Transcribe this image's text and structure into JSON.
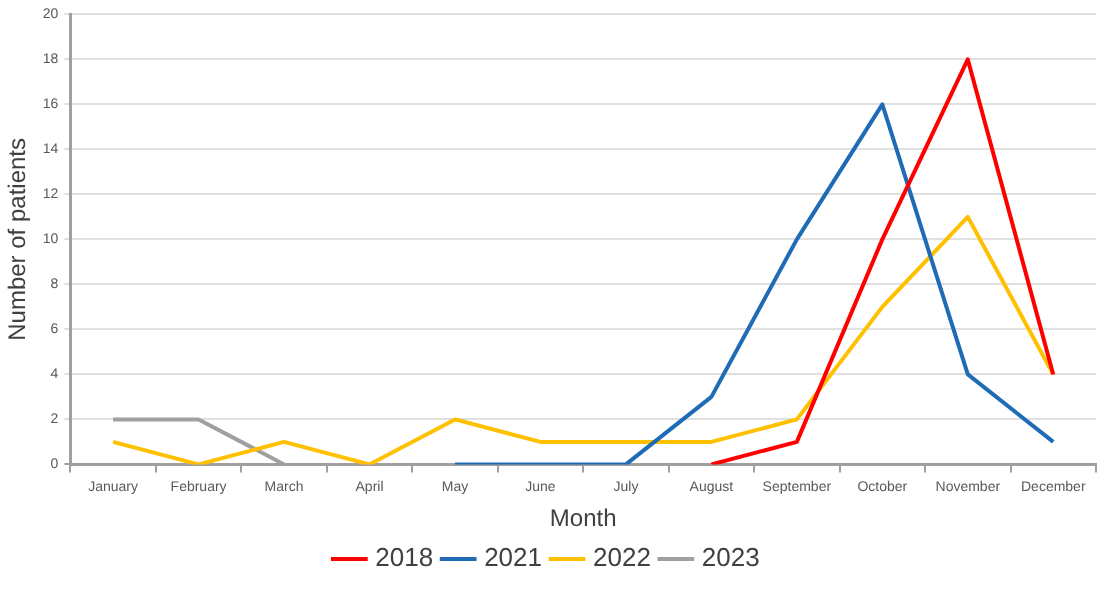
{
  "chart_data": {
    "type": "line",
    "xlabel": "Month",
    "ylabel": "Number of patients",
    "categories": [
      "January",
      "February",
      "March",
      "April",
      "May",
      "June",
      "July",
      "August",
      "September",
      "October",
      "November",
      "December"
    ],
    "series": [
      {
        "name": "2018",
        "color": "#ff0000",
        "values": [
          null,
          null,
          null,
          null,
          null,
          null,
          null,
          0,
          1,
          10,
          18,
          4
        ]
      },
      {
        "name": "2021",
        "color": "#1f6bb5",
        "values": [
          null,
          null,
          null,
          null,
          0,
          0,
          0,
          3,
          10,
          16,
          4,
          1
        ]
      },
      {
        "name": "2022",
        "color": "#ffc000",
        "values": [
          1,
          0,
          1,
          0,
          2,
          1,
          1,
          1,
          2,
          7,
          11,
          4
        ]
      },
      {
        "name": "2023",
        "color": "#a0a0a0",
        "values": [
          2,
          2,
          0,
          null,
          null,
          null,
          null,
          null,
          null,
          null,
          null,
          null
        ]
      }
    ],
    "ylim": [
      0,
      20
    ],
    "yticks": [
      0,
      2,
      4,
      6,
      8,
      10,
      12,
      14,
      16,
      18,
      20
    ],
    "grid": "y",
    "legend": "bottom",
    "marker": "none",
    "line_style": "solid"
  }
}
